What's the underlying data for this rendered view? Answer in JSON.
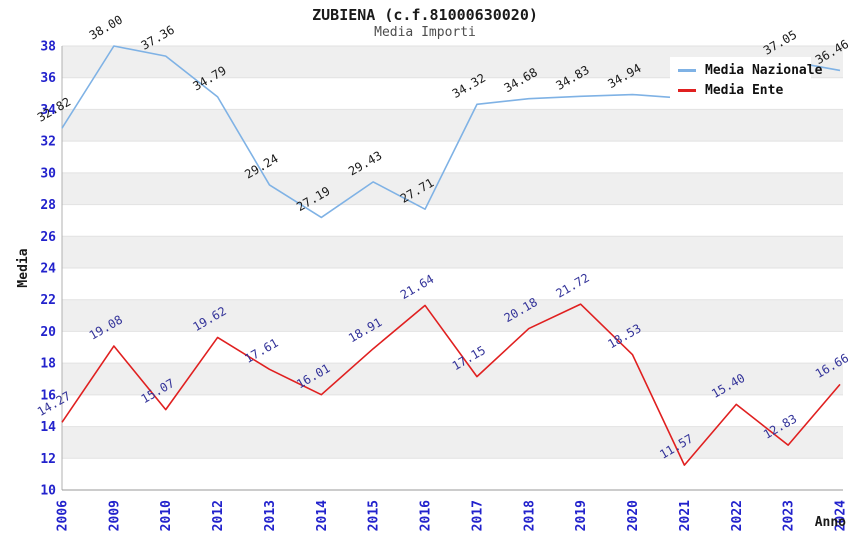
{
  "header": {
    "title": "ZUBIENA (c.f.81000630020)",
    "subtitle": "Media Importi"
  },
  "axes": {
    "y_title": "Media",
    "x_title": "Anno",
    "y_ticks": [
      10,
      12,
      14,
      16,
      18,
      20,
      22,
      24,
      26,
      28,
      30,
      32,
      34,
      36,
      38
    ],
    "tick_color": "#2222cc"
  },
  "legend": {
    "items": [
      {
        "label": "Media Nazionale",
        "color": "#7fb2e5"
      },
      {
        "label": "Media Ente",
        "color": "#e02020"
      }
    ]
  },
  "colors": {
    "band_gray": "#efefef",
    "band_white": "#ffffff",
    "gridline": "#e2e2e2",
    "axis_line": "#b0b0b0",
    "title_text": "#1a1a1a",
    "subtitle_text": "#4d4d4d"
  },
  "chart_data": {
    "type": "line",
    "title": "ZUBIENA (c.f.81000630020)",
    "subtitle": "Media Importi",
    "xlabel": "Anno",
    "ylabel": "Media",
    "ylim": [
      10,
      38
    ],
    "ytick_step": 2,
    "grid": "horizontal-bands-alternating",
    "legend_position": "top-right-overlay",
    "categories": [
      "2006",
      "2009",
      "2010",
      "2012",
      "2013",
      "2014",
      "2015",
      "2016",
      "2017",
      "2018",
      "2019",
      "2020",
      "2021",
      "2022",
      "2023",
      "2024"
    ],
    "series": [
      {
        "name": "Media Nazionale",
        "color": "#7fb2e5",
        "label_color": "#1a1a1a",
        "values": [
          32.82,
          38.0,
          37.36,
          34.79,
          29.24,
          27.19,
          29.43,
          27.71,
          34.32,
          34.68,
          34.83,
          34.94,
          34.7,
          35.85,
          37.05,
          36.46
        ],
        "labels": [
          "32.82",
          "38.00",
          "37.36",
          "34.79",
          "29.24",
          "27.19",
          "29.43",
          "27.71",
          "34.32",
          "34.68",
          "34.83",
          "34.94",
          null,
          null,
          "37.05",
          "36.46"
        ],
        "note": "2021 and 2022 point labels hidden behind legend box; values for those two points estimated from line path"
      },
      {
        "name": "Media Ente",
        "color": "#e02020",
        "label_color": "#333399",
        "values": [
          14.27,
          19.08,
          15.07,
          19.62,
          17.61,
          16.01,
          18.91,
          21.64,
          17.15,
          20.18,
          21.72,
          18.53,
          11.57,
          15.4,
          12.83,
          16.66
        ],
        "labels": [
          "14.27",
          "19.08",
          "15.07",
          "19.62",
          "17.61",
          "16.01",
          "18.91",
          "21.64",
          "17.15",
          "20.18",
          "21.72",
          "18.53",
          "11.57",
          "15.40",
          "12.83",
          "16.66"
        ]
      }
    ]
  }
}
